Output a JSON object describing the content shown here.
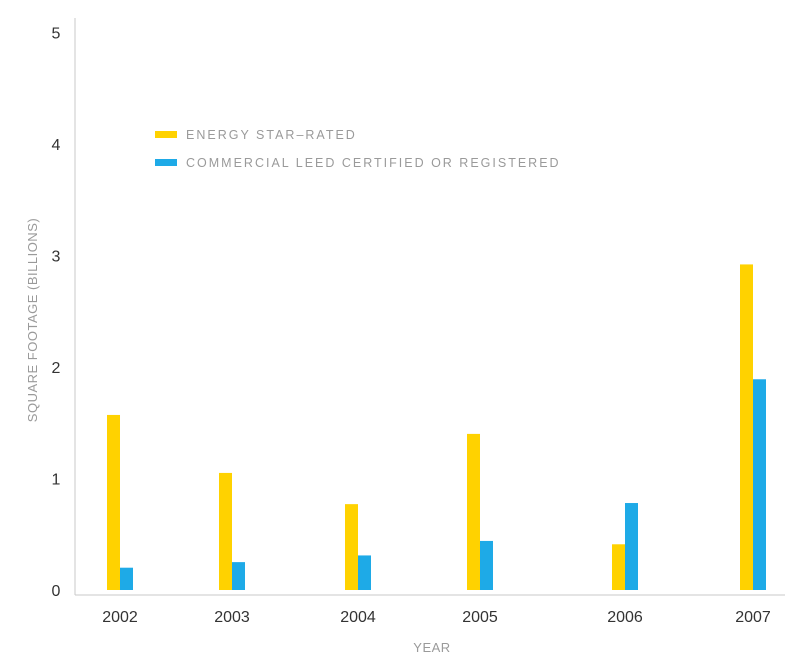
{
  "chart_data": {
    "type": "bar",
    "title": "",
    "xlabel": "YEAR",
    "ylabel": "SQUARE FOOTAGE (BILLIONS)",
    "categories": [
      "2002",
      "2003",
      "2004",
      "2005",
      "2006",
      "2007"
    ],
    "series": [
      {
        "name": "ENERGY STAR–RATED",
        "color": "#ffd200",
        "values": [
          1.57,
          1.05,
          0.77,
          1.4,
          0.41,
          2.92
        ]
      },
      {
        "name": "COMMERCIAL LEED CERTIFIED OR REGISTERED",
        "color": "#1eaae7",
        "values": [
          0.2,
          0.25,
          0.31,
          0.44,
          0.78,
          1.89
        ]
      }
    ],
    "ylim": [
      0,
      5
    ],
    "yticks": [
      "0",
      "1",
      "2",
      "3",
      "4",
      "5"
    ],
    "grid": false,
    "legend": "top-left"
  }
}
